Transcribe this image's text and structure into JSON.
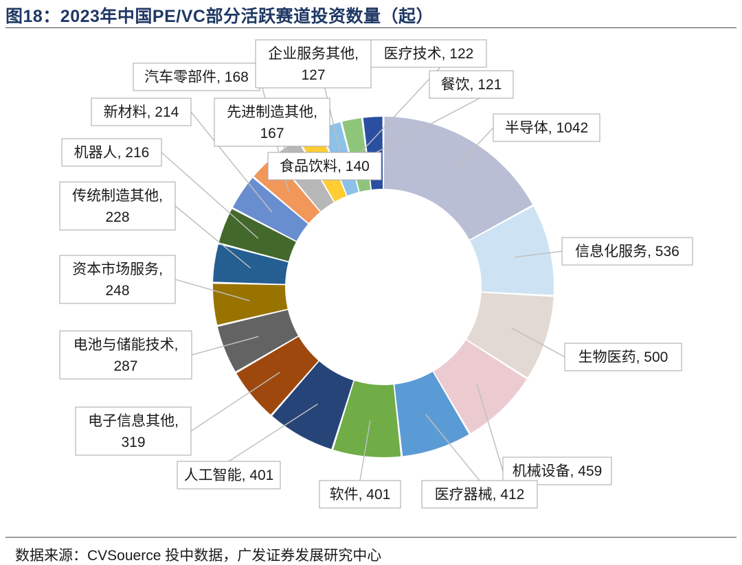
{
  "figure": {
    "title": "图18：2023年中国PE/VC部分活跃赛道投资数量（起）",
    "source": "数据来源：CVSouerce 投中数据，广发证券发展研究中心"
  },
  "chart_data": {
    "type": "donut",
    "title": "图18：2023年中国PE/VC部分活跃赛道投资数量（起）",
    "unit": "起",
    "categories": [
      "半导体",
      "信息化服务",
      "生物医药",
      "机械设备",
      "医疗器械",
      "软件",
      "人工智能",
      "电子信息其他",
      "电池与储能技术",
      "资本市场服务",
      "传统制造其他",
      "机器人",
      "新材料",
      "汽车零部件",
      "先进制造其他",
      "食品饮料",
      "企业服务其他",
      "医疗技术",
      "餐饮"
    ],
    "values": [
      1042,
      536,
      500,
      459,
      412,
      401,
      401,
      319,
      287,
      248,
      228,
      216,
      214,
      168,
      167,
      140,
      127,
      122,
      121
    ],
    "colors": [
      "#b9bed5",
      "#cde3f3",
      "#e2d9d2",
      "#eccbd0",
      "#5b9bd5",
      "#70ad47",
      "#264478",
      "#9e480e",
      "#636363",
      "#997300",
      "#255e91",
      "#43682b",
      "#698ed0",
      "#f1975a",
      "#b7b7b7",
      "#ffcd33",
      "#8cc1e8",
      "#8fc57a",
      "#2a4fa0"
    ],
    "labels": [
      "半导体, 1042",
      "信息化服务, 536",
      "生物医药, 500",
      "机械设备, 459",
      "医疗器械, 412",
      "软件, 401",
      "人工智能, 401",
      "电子信息其他,\n319",
      "电池与储能技术,\n287",
      "资本市场服务,\n248",
      "传统制造其他,\n228",
      "机器人, 216",
      "新材料, 214",
      "汽车零部件, 168",
      "先进制造其他,\n167",
      "食品饮料, 140",
      "企业服务其他,\n127",
      "医疗技术, 122",
      "餐饮, 121"
    ],
    "legend": "none"
  }
}
